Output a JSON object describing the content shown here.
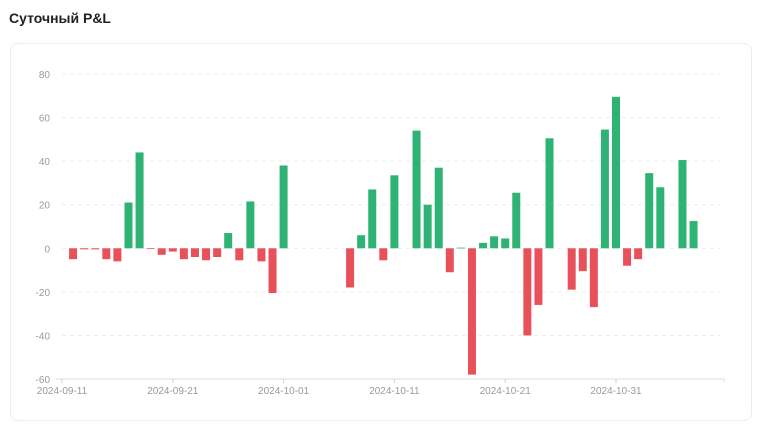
{
  "chart_data": {
    "type": "bar",
    "title": "Суточный P&L",
    "xlabel": "",
    "ylabel": "",
    "ylim": [
      -60,
      80
    ],
    "yticks": [
      80,
      60,
      40,
      20,
      0,
      -20,
      -40,
      -60
    ],
    "xticks": [
      "2024-09-11",
      "2024-09-21",
      "2024-10-01",
      "2024-10-11",
      "2024-10-21",
      "2024-10-31"
    ],
    "grid": true,
    "colors": {
      "positive": "#2eb374",
      "negative": "#e8515a"
    },
    "x": [
      "2024-09-12",
      "2024-09-13",
      "2024-09-14",
      "2024-09-15",
      "2024-09-16",
      "2024-09-17",
      "2024-09-18",
      "2024-09-19",
      "2024-09-20",
      "2024-09-21",
      "2024-09-22",
      "2024-09-23",
      "2024-09-24",
      "2024-09-25",
      "2024-09-26",
      "2024-09-27",
      "2024-09-28",
      "2024-09-29",
      "2024-09-30",
      "2024-10-01",
      "2024-10-07",
      "2024-10-08",
      "2024-10-09",
      "2024-10-10",
      "2024-10-11",
      "2024-10-13",
      "2024-10-14",
      "2024-10-15",
      "2024-10-16",
      "2024-10-17",
      "2024-10-18",
      "2024-10-19",
      "2024-10-20",
      "2024-10-21",
      "2024-10-22",
      "2024-10-23",
      "2024-10-24",
      "2024-10-25",
      "2024-10-27",
      "2024-10-28",
      "2024-10-29",
      "2024-10-30",
      "2024-10-31",
      "2024-11-01",
      "2024-11-02",
      "2024-11-03",
      "2024-11-04",
      "2024-11-06",
      "2024-11-07"
    ],
    "values": [
      -5,
      -0.5,
      -0.5,
      -5,
      -6,
      21,
      44,
      -0.2,
      -3,
      -1.5,
      -5,
      -4,
      -5.5,
      -4,
      7,
      -5.5,
      21.5,
      -6,
      -20.5,
      38,
      -18,
      6,
      27,
      -5.5,
      33.5,
      54,
      20,
      37,
      -11,
      0.3,
      -58,
      2.5,
      5.5,
      4.5,
      25.5,
      -40,
      -26,
      50.5,
      -19,
      -10.5,
      -27,
      54.5,
      69.5,
      -8,
      -5,
      34.5,
      28,
      40.5,
      12.5
    ]
  }
}
